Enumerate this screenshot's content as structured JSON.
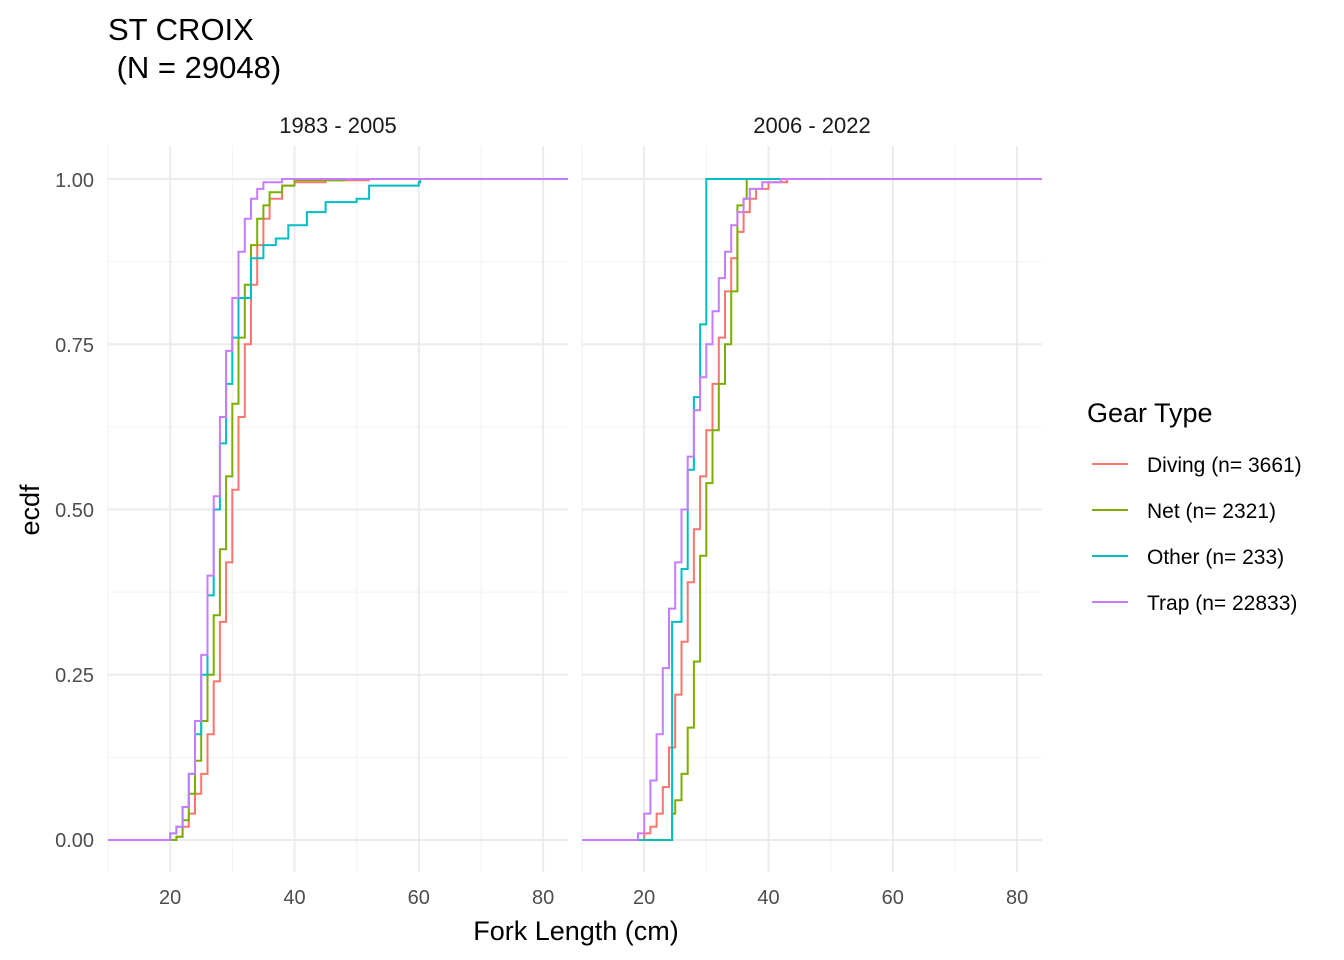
{
  "chart_data": {
    "type": "line",
    "subtype": "ecdf-step",
    "title_line1": "ST CROIX",
    "title_line2": " (N = 29048)",
    "xlabel": "Fork Length (cm)",
    "ylabel": "ecdf",
    "xlim": [
      10,
      84
    ],
    "ylim": [
      0,
      1
    ],
    "x_ticks": [
      "20",
      "40",
      "60",
      "80"
    ],
    "x_tick_values": [
      20,
      40,
      60,
      80
    ],
    "y_ticks": [
      "0.00",
      "0.25",
      "0.50",
      "0.75",
      "1.00"
    ],
    "y_tick_values": [
      0,
      0.25,
      0.5,
      0.75,
      1.0
    ],
    "grid": true,
    "legend": {
      "title": "Gear Type",
      "placement": "right",
      "entries": [
        {
          "label": "Diving (n= 3661)",
          "color": "#F8766D"
        },
        {
          "label": "Net (n= 2321)",
          "color": "#7CAE00"
        },
        {
          "label": "Other (n= 233)",
          "color": "#00BFC4"
        },
        {
          "label": "Trap (n= 22833)",
          "color": "#C77CFF"
        }
      ]
    },
    "facets": [
      {
        "label": "1983 - 2005",
        "series": [
          {
            "color": "#F8766D",
            "points": [
              [
                10,
                0
              ],
              [
                20,
                0
              ],
              [
                21,
                0.005
              ],
              [
                22,
                0.02
              ],
              [
                23,
                0.04
              ],
              [
                24,
                0.07
              ],
              [
                25,
                0.1
              ],
              [
                26,
                0.16
              ],
              [
                27,
                0.24
              ],
              [
                28,
                0.33
              ],
              [
                29,
                0.42
              ],
              [
                30,
                0.53
              ],
              [
                31,
                0.64
              ],
              [
                32,
                0.75
              ],
              [
                33,
                0.84
              ],
              [
                34,
                0.9
              ],
              [
                35,
                0.94
              ],
              [
                36,
                0.97
              ],
              [
                38,
                0.99
              ],
              [
                40,
                0.995
              ],
              [
                45,
                0.998
              ],
              [
                52,
                1.0
              ],
              [
                84,
                1.0
              ]
            ]
          },
          {
            "color": "#7CAE00",
            "points": [
              [
                10,
                0
              ],
              [
                20,
                0
              ],
              [
                21,
                0.005
              ],
              [
                22,
                0.03
              ],
              [
                23,
                0.07
              ],
              [
                24,
                0.12
              ],
              [
                25,
                0.18
              ],
              [
                26,
                0.25
              ],
              [
                27,
                0.34
              ],
              [
                28,
                0.44
              ],
              [
                29,
                0.55
              ],
              [
                30,
                0.66
              ],
              [
                31,
                0.76
              ],
              [
                32,
                0.84
              ],
              [
                33,
                0.9
              ],
              [
                34,
                0.94
              ],
              [
                35,
                0.96
              ],
              [
                36,
                0.98
              ],
              [
                38,
                0.99
              ],
              [
                40,
                0.998
              ],
              [
                48,
                1.0
              ],
              [
                84,
                1.0
              ]
            ]
          },
          {
            "color": "#00BFC4",
            "points": [
              [
                10,
                0
              ],
              [
                19.5,
                0
              ],
              [
                20,
                0.01
              ],
              [
                21,
                0.02
              ],
              [
                22,
                0.05
              ],
              [
                23,
                0.1
              ],
              [
                24,
                0.16
              ],
              [
                25,
                0.25
              ],
              [
                26,
                0.37
              ],
              [
                27,
                0.5
              ],
              [
                28,
                0.6
              ],
              [
                29,
                0.69
              ],
              [
                30,
                0.76
              ],
              [
                31,
                0.82
              ],
              [
                33,
                0.88
              ],
              [
                35,
                0.9
              ],
              [
                37,
                0.91
              ],
              [
                39,
                0.93
              ],
              [
                42,
                0.95
              ],
              [
                45,
                0.965
              ],
              [
                50,
                0.97
              ],
              [
                52,
                0.99
              ],
              [
                60,
                0.995
              ],
              [
                60.2,
                1.0
              ],
              [
                84,
                1.0
              ]
            ]
          },
          {
            "color": "#C77CFF",
            "points": [
              [
                10,
                0
              ],
              [
                19.5,
                0
              ],
              [
                20,
                0.01
              ],
              [
                21,
                0.02
              ],
              [
                22,
                0.05
              ],
              [
                23,
                0.1
              ],
              [
                24,
                0.18
              ],
              [
                25,
                0.28
              ],
              [
                26,
                0.4
              ],
              [
                27,
                0.52
              ],
              [
                28,
                0.64
              ],
              [
                29,
                0.74
              ],
              [
                30,
                0.82
              ],
              [
                31,
                0.89
              ],
              [
                32,
                0.94
              ],
              [
                33,
                0.97
              ],
              [
                34,
                0.985
              ],
              [
                35,
                0.995
              ],
              [
                38,
                1.0
              ],
              [
                84,
                1.0
              ]
            ]
          }
        ]
      },
      {
        "label": "2006 - 2022",
        "series": [
          {
            "color": "#F8766D",
            "points": [
              [
                10,
                0
              ],
              [
                19,
                0
              ],
              [
                20,
                0.01
              ],
              [
                21,
                0.02
              ],
              [
                22,
                0.04
              ],
              [
                23,
                0.08
              ],
              [
                24,
                0.14
              ],
              [
                25,
                0.22
              ],
              [
                26,
                0.3
              ],
              [
                27,
                0.39
              ],
              [
                28,
                0.47
              ],
              [
                29,
                0.55
              ],
              [
                30,
                0.62
              ],
              [
                31,
                0.69
              ],
              [
                32,
                0.76
              ],
              [
                33,
                0.83
              ],
              [
                34,
                0.88
              ],
              [
                35,
                0.92
              ],
              [
                36,
                0.95
              ],
              [
                37,
                0.97
              ],
              [
                38,
                0.985
              ],
              [
                40,
                0.995
              ],
              [
                43,
                1.0
              ],
              [
                84,
                1.0
              ]
            ]
          },
          {
            "color": "#7CAE00",
            "points": [
              [
                10,
                0
              ],
              [
                24,
                0
              ],
              [
                24.5,
                0.04
              ],
              [
                25,
                0.06
              ],
              [
                26,
                0.1
              ],
              [
                27,
                0.17
              ],
              [
                28,
                0.27
              ],
              [
                29,
                0.43
              ],
              [
                30,
                0.54
              ],
              [
                31,
                0.62
              ],
              [
                32,
                0.69
              ],
              [
                33,
                0.75
              ],
              [
                34,
                0.83
              ],
              [
                35,
                0.96
              ],
              [
                36,
                0.97
              ],
              [
                36.5,
                1.0
              ],
              [
                84,
                1.0
              ]
            ]
          },
          {
            "color": "#00BFC4",
            "points": [
              [
                10,
                0
              ],
              [
                24,
                0
              ],
              [
                24.5,
                0.33
              ],
              [
                26,
                0.41
              ],
              [
                27,
                0.56
              ],
              [
                28,
                0.67
              ],
              [
                29,
                0.78
              ],
              [
                29.8,
                0.78
              ],
              [
                30,
                1.0
              ],
              [
                84,
                1.0
              ]
            ]
          },
          {
            "color": "#C77CFF",
            "points": [
              [
                10,
                0
              ],
              [
                18,
                0
              ],
              [
                19,
                0.01
              ],
              [
                20,
                0.04
              ],
              [
                21,
                0.09
              ],
              [
                22,
                0.16
              ],
              [
                23,
                0.26
              ],
              [
                24,
                0.35
              ],
              [
                25,
                0.42
              ],
              [
                26,
                0.5
              ],
              [
                27,
                0.58
              ],
              [
                28,
                0.65
              ],
              [
                29,
                0.7
              ],
              [
                30,
                0.75
              ],
              [
                31,
                0.8
              ],
              [
                32,
                0.85
              ],
              [
                33,
                0.89
              ],
              [
                34,
                0.93
              ],
              [
                35,
                0.95
              ],
              [
                36,
                0.97
              ],
              [
                37,
                0.985
              ],
              [
                39,
                0.995
              ],
              [
                42,
                1.0
              ],
              [
                84,
                1.0
              ]
            ]
          }
        ]
      }
    ]
  }
}
